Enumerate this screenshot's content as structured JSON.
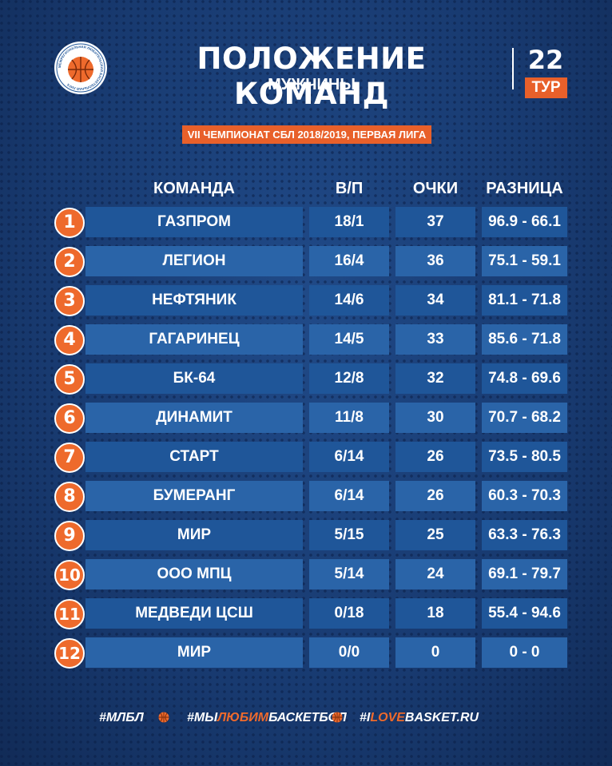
{
  "header": {
    "logo_text": "МЕЖРЕГИОНАЛЬНАЯ ЛЮБИТЕЛЬСКАЯ БАСКЕТБОЛЬНАЯ ЛИГА",
    "title": "ПОЛОЖЕНИЕ КОМАНД",
    "subtitle": "МУЖЧИНЫ",
    "round_number": "22",
    "round_label": "ТУР",
    "league": "VII ЧЕМПИОНАТ СБЛ 2018/2019, ПЕРВАЯ ЛИГА"
  },
  "table": {
    "headers": {
      "team": "КОМАНДА",
      "wl": "В/П",
      "points": "ОЧКИ",
      "diff": "РАЗНИЦА"
    },
    "rows": [
      {
        "rank": "1",
        "team": "ГАЗПРОМ",
        "wl": "18/1",
        "points": "37",
        "diff": "96.9 - 66.1"
      },
      {
        "rank": "2",
        "team": "ЛЕГИОН",
        "wl": "16/4",
        "points": "36",
        "diff": "75.1 - 59.1"
      },
      {
        "rank": "3",
        "team": "НЕФТЯНИК",
        "wl": "14/6",
        "points": "34",
        "diff": "81.1 - 71.8"
      },
      {
        "rank": "4",
        "team": "ГАГАРИНЕЦ",
        "wl": "14/5",
        "points": "33",
        "diff": "85.6 - 71.8"
      },
      {
        "rank": "5",
        "team": "БК-64",
        "wl": "12/8",
        "points": "32",
        "diff": "74.8 - 69.6"
      },
      {
        "rank": "6",
        "team": "ДИНАМИТ",
        "wl": "11/8",
        "points": "30",
        "diff": "70.7 - 68.2"
      },
      {
        "rank": "7",
        "team": "СТАРТ",
        "wl": "6/14",
        "points": "26",
        "diff": "73.5 - 80.5"
      },
      {
        "rank": "8",
        "team": "БУМЕРАНГ",
        "wl": "6/14",
        "points": "26",
        "diff": "60.3 - 70.3"
      },
      {
        "rank": "9",
        "team": "МИР",
        "wl": "5/15",
        "points": "25",
        "diff": "63.3 - 76.3"
      },
      {
        "rank": "10",
        "team": "ООО МПЦ",
        "wl": "5/14",
        "points": "24",
        "diff": "69.1 - 79.7"
      },
      {
        "rank": "11",
        "team": "МЕДВЕДИ ЦСШ",
        "wl": "0/18",
        "points": "18",
        "diff": "55.4 - 94.6"
      },
      {
        "rank": "12",
        "team": "МИР",
        "wl": "0/0",
        "points": "0",
        "diff": "0 - 0"
      }
    ]
  },
  "footer": {
    "tag1": "#МЛБЛ",
    "tag2_a": "#МЫ",
    "tag2_b": "ЛЮБИМ",
    "tag2_c": "БАСКЕТБОЛ",
    "tag3_a": "#I",
    "tag3_b": "LOVE",
    "tag3_c": "BASKET.RU"
  },
  "colors": {
    "accent": "#ee6a2c",
    "background": "#1a3f76",
    "row": "#1f5699",
    "row_alt": "#2a64a8"
  }
}
